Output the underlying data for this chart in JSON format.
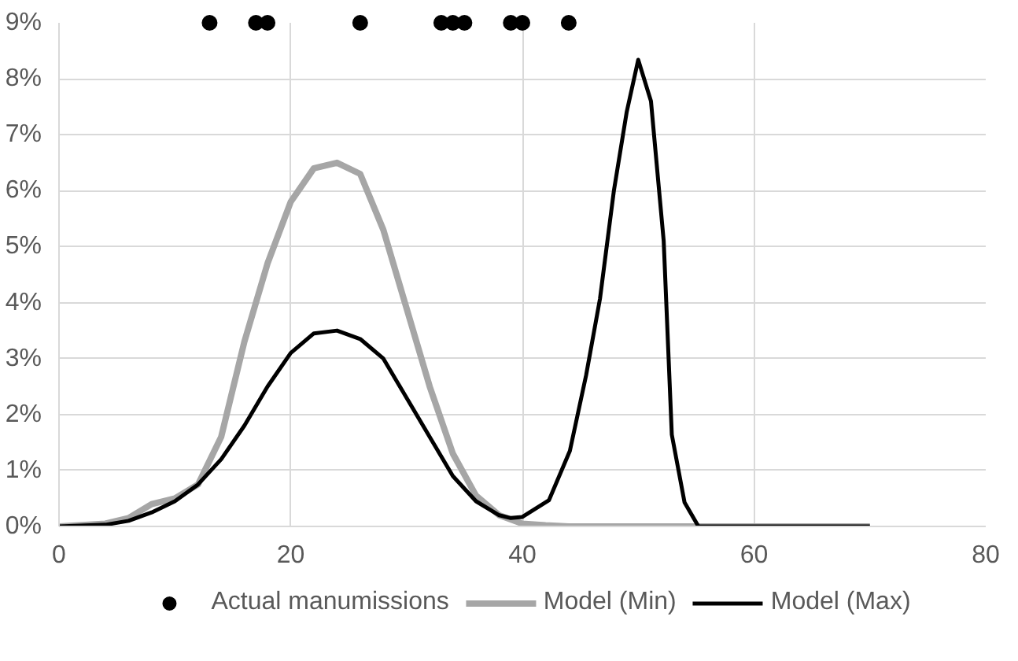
{
  "chart_data": {
    "type": "line",
    "xlim": [
      0,
      80
    ],
    "xticks": [
      0,
      20,
      40,
      60,
      80
    ],
    "ylim": [
      0,
      0.09
    ],
    "yticks": [
      {
        "value": 0,
        "label": "0%"
      },
      {
        "value": 0.01,
        "label": "1%"
      },
      {
        "value": 0.02,
        "label": "2%"
      },
      {
        "value": 0.03,
        "label": "3%"
      },
      {
        "value": 0.04,
        "label": "4%"
      },
      {
        "value": 0.05,
        "label": "5%"
      },
      {
        "value": 0.06,
        "label": "6%"
      },
      {
        "value": 0.07,
        "label": "7%"
      },
      {
        "value": 0.08,
        "label": "8%"
      },
      {
        "value": 0.09,
        "label": "9%"
      }
    ],
    "grid": true,
    "legend": "bottom",
    "series": [
      {
        "name": "Actual manumissions",
        "type": "scatter",
        "marker": "circle",
        "color": "#000000",
        "x": [
          13,
          17,
          18,
          26,
          33,
          34,
          35,
          39,
          40,
          44
        ],
        "values": [
          0.09,
          0.09,
          0.09,
          0.09,
          0.09,
          0.09,
          0.09,
          0.09,
          0.09,
          0.09
        ]
      },
      {
        "name": "Model (Min)",
        "color": "#a6a6a6",
        "x": [
          0,
          4,
          6,
          8,
          10,
          12,
          14,
          16,
          18,
          20,
          22,
          24,
          26,
          28,
          30,
          32,
          34,
          36,
          38,
          40,
          42,
          44,
          70
        ],
        "values": [
          0,
          0.0005,
          0.0015,
          0.004,
          0.005,
          0.0075,
          0.016,
          0.033,
          0.047,
          0.058,
          0.064,
          0.065,
          0.063,
          0.053,
          0.039,
          0.025,
          0.013,
          0.0055,
          0.002,
          0.0005,
          0.0002,
          0,
          0
        ]
      },
      {
        "name": "Model (Max)",
        "color": "#000000",
        "x": [
          0,
          4,
          6,
          8,
          10,
          12,
          14,
          16,
          18,
          20,
          22,
          24,
          26,
          28,
          30,
          32,
          34,
          36,
          38,
          39,
          40,
          42.3,
          44.1,
          45.5,
          46.7,
          47.9,
          49,
          50,
          51.1,
          52.2,
          52.9,
          54,
          55.2,
          56,
          70
        ],
        "values": [
          0,
          0.0003,
          0.001,
          0.0025,
          0.0045,
          0.0075,
          0.012,
          0.018,
          0.025,
          0.031,
          0.0345,
          0.035,
          0.0335,
          0.03,
          0.023,
          0.016,
          0.009,
          0.0045,
          0.002,
          0.0015,
          0.0017,
          0.0047,
          0.0135,
          0.027,
          0.0407,
          0.06,
          0.074,
          0.0834,
          0.076,
          0.051,
          0.0164,
          0.0043,
          0,
          0,
          0
        ]
      }
    ]
  }
}
